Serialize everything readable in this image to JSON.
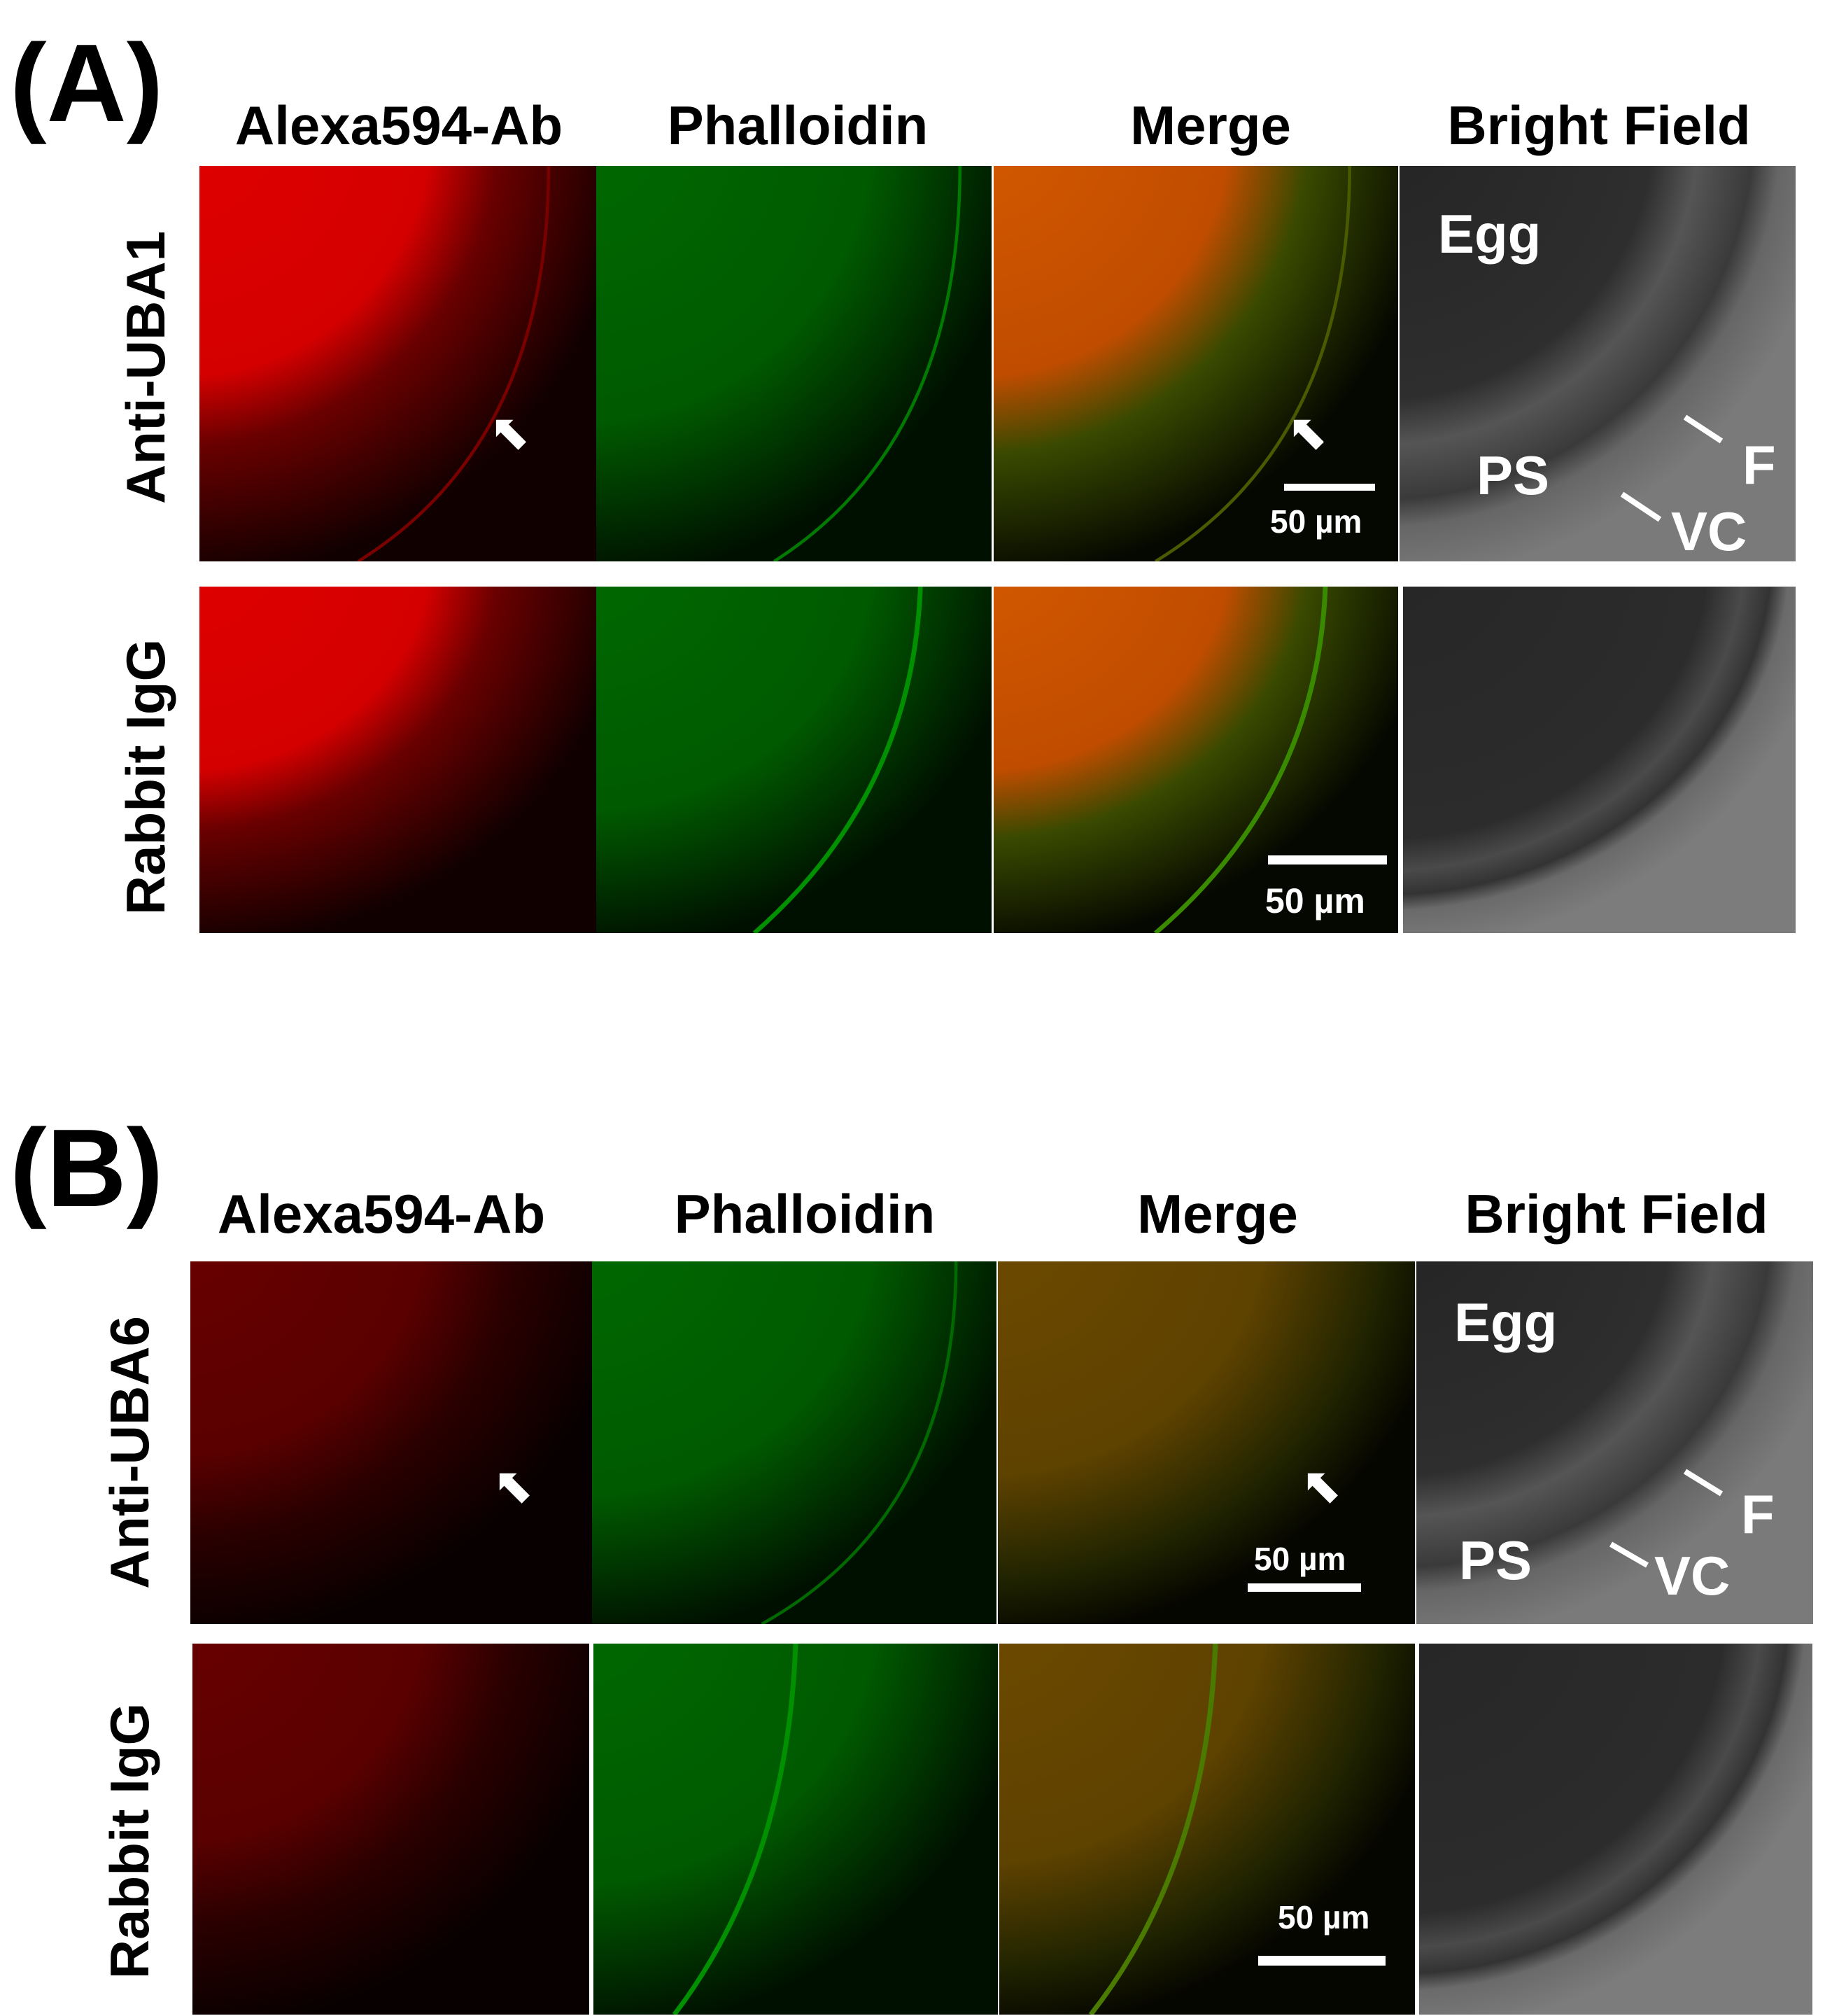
{
  "panels": [
    {
      "letter": "(A)",
      "columns": [
        "Alexa594-Ab",
        "Phalloidin",
        "Merge",
        "Bright Field"
      ],
      "rows": [
        "Anti-UBA1",
        "Rabbit IgG"
      ],
      "scale_labels": [
        "50 µm",
        "50 µm"
      ],
      "bright_field_labels": {
        "egg": "Egg",
        "ps": "PS",
        "f": "F",
        "vc": "VC"
      }
    },
    {
      "letter": "(B)",
      "columns": [
        "Alexa594-Ab",
        "Phalloidin",
        "Merge",
        "Bright Field"
      ],
      "rows": [
        "Anti-UBA6",
        "Rabbit IgG"
      ],
      "scale_labels": [
        "50 µm",
        "50 µm"
      ],
      "bright_field_labels": {
        "egg": "Egg",
        "ps": "PS",
        "f": "F",
        "vc": "VC"
      }
    }
  ],
  "colors": {
    "red_bright": "#dd0000",
    "red_dim": "#5a0000",
    "green": "#006400",
    "merge_orange": "#c85000",
    "merge_olive": "#6a4600",
    "bright_field_dark": "#262626",
    "bright_field_light": "#777777"
  }
}
